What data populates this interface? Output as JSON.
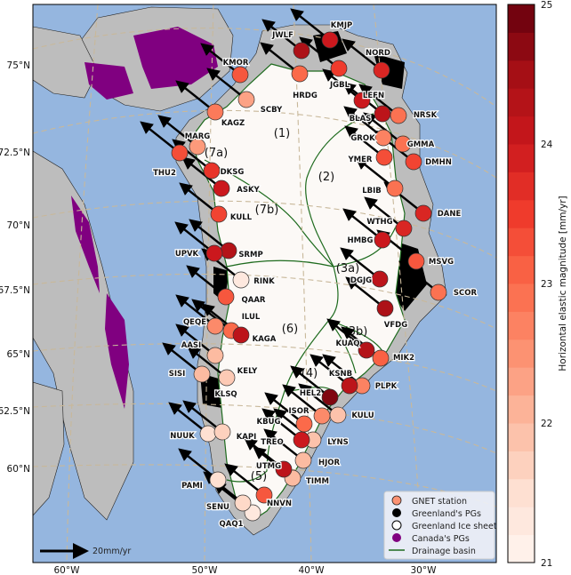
{
  "map": {
    "lat_labels": [
      "75°N",
      "72.5°N",
      "70°N",
      "67.5°N",
      "65°N",
      "62.5°N",
      "60°N"
    ],
    "lon_labels": [
      "60°W",
      "50°W",
      "40°W",
      "30°W"
    ],
    "regions": [
      "(1)",
      "(2)",
      "(3a)",
      "(3b)",
      "(4)",
      "(5)",
      "(6)",
      "(7a)",
      "(7b)"
    ],
    "scale_label": "20mm/yr",
    "colors": {
      "ocean": "#95b6df",
      "land": "#bdbdbd",
      "ice": "#fcf9f6",
      "canada_pg": "#800080",
      "greenland_pg": "#000000",
      "basin": "#1e6b1e"
    }
  },
  "stations": [
    {
      "name": "KMJP",
      "mag": 24.0
    },
    {
      "name": "JWLF",
      "mag": 24.4
    },
    {
      "name": "NORD",
      "mag": 23.8
    },
    {
      "name": "HRDG",
      "mag": 23.0
    },
    {
      "name": "JGBL",
      "mag": 23.5
    },
    {
      "name": "KMOR",
      "mag": 23.2
    },
    {
      "name": "SCBY",
      "mag": 22.3
    },
    {
      "name": "KAGZ",
      "mag": 22.8
    },
    {
      "name": "LEFN",
      "mag": 24.0
    },
    {
      "name": "BLAS",
      "mag": 24.2
    },
    {
      "name": "NRSK",
      "mag": 22.9
    },
    {
      "name": "GROK",
      "mag": 22.7
    },
    {
      "name": "GMMA",
      "mag": 22.9
    },
    {
      "name": "DMHN",
      "mag": 23.4
    },
    {
      "name": "YMER",
      "mag": 23.3
    },
    {
      "name": "LBIB",
      "mag": 22.9
    },
    {
      "name": "DANE",
      "mag": 23.8
    },
    {
      "name": "WTHG",
      "mag": 23.8
    },
    {
      "name": "HMBG",
      "mag": 24.0
    },
    {
      "name": "MSVG",
      "mag": 23.2
    },
    {
      "name": "SCOR",
      "mag": 22.9
    },
    {
      "name": "DGJG",
      "mag": 24.2
    },
    {
      "name": "VFDG",
      "mag": 24.4
    },
    {
      "name": "MIK2",
      "mag": 23.1
    },
    {
      "name": "KUAQ",
      "mag": 24.3
    },
    {
      "name": "PLPK",
      "mag": 22.7
    },
    {
      "name": "KSNB",
      "mag": 24.2
    },
    {
      "name": "HEL2",
      "mag": 24.8
    },
    {
      "name": "KULU",
      "mag": 21.9
    },
    {
      "name": "ISOR",
      "mag": 22.6
    },
    {
      "name": "LYNS",
      "mag": 21.9
    },
    {
      "name": "KBUG",
      "mag": 23.0
    },
    {
      "name": "TREO",
      "mag": 24.0
    },
    {
      "name": "HJOR",
      "mag": 22.0
    },
    {
      "name": "TIMM",
      "mag": 22.0
    },
    {
      "name": "UTMG",
      "mag": 24.2
    },
    {
      "name": "NNVN",
      "mag": 23.2
    },
    {
      "name": "QAQ1",
      "mag": 21.3
    },
    {
      "name": "SENU",
      "mag": 21.6
    },
    {
      "name": "PAMI",
      "mag": 21.5
    },
    {
      "name": "NUUK",
      "mag": 21.5
    },
    {
      "name": "KAPI",
      "mag": 21.7
    },
    {
      "name": "KLSQ",
      "mag": null
    },
    {
      "name": "SISI",
      "mag": 22.0
    },
    {
      "name": "KELY",
      "mag": 21.8
    },
    {
      "name": "AASI",
      "mag": 22.0
    },
    {
      "name": "QEQE",
      "mag": 22.6
    },
    {
      "name": "ILUL",
      "mag": 23.0
    },
    {
      "name": "KAGA",
      "mag": 24.2
    },
    {
      "name": "QAAR",
      "mag": 23.2
    },
    {
      "name": "RINK",
      "mag": 21.3
    },
    {
      "name": "SRMP",
      "mag": 24.3
    },
    {
      "name": "UPVK",
      "mag": 24.0
    },
    {
      "name": "KULL",
      "mag": 23.4
    },
    {
      "name": "ASKY",
      "mag": 24.0
    },
    {
      "name": "DKSG",
      "mag": 23.6
    },
    {
      "name": "THU2",
      "mag": 23.3
    },
    {
      "name": "MARG",
      "mag": 22.4
    }
  ],
  "legend": {
    "items": [
      {
        "label": "GNET station",
        "color": "#fc9272"
      },
      {
        "label": "Greenland's PGs",
        "color": "#000000"
      },
      {
        "label": "Greenland Ice sheet",
        "color": "#ffffff"
      },
      {
        "label": "Canada's PGs",
        "color": "#800080"
      },
      {
        "label": "Drainage basin",
        "color": "#1e6b1e"
      }
    ]
  },
  "colorbar": {
    "label": "Horizontal elastic magnitude [mm/yr]",
    "min": 21,
    "max": 25,
    "ticks": [
      "25",
      "24",
      "23",
      "22",
      "21"
    ],
    "colormap": "Reds"
  }
}
